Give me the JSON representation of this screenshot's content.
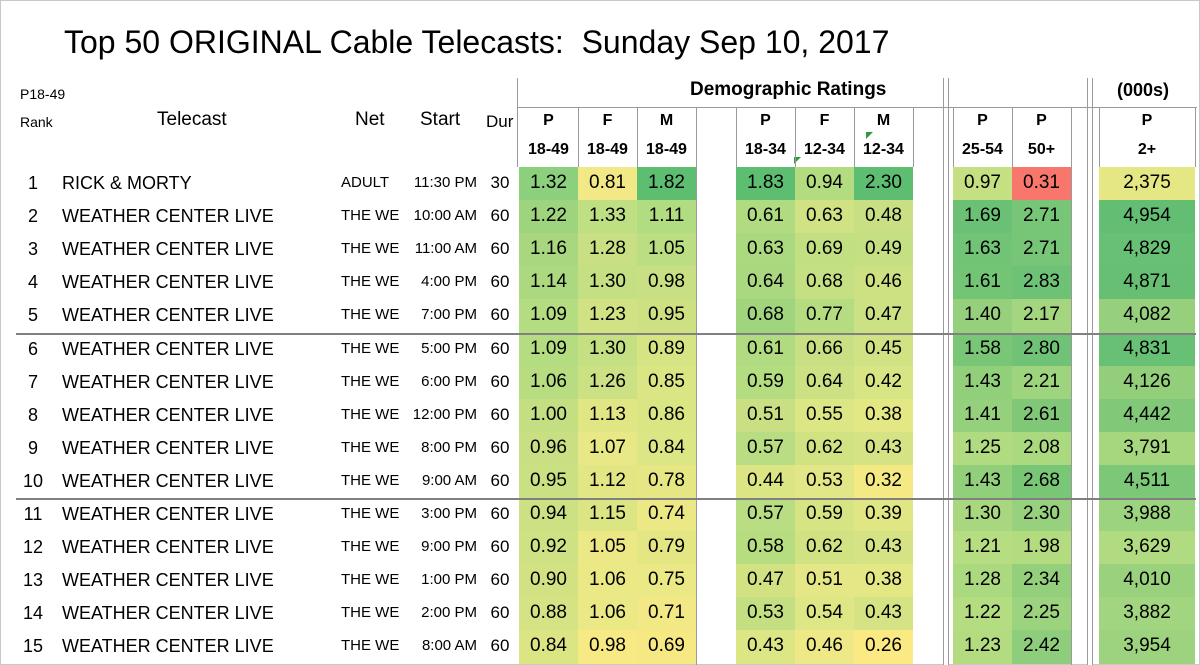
{
  "title": "Top 50 ORIGINAL Cable Telecasts:  Sunday Sep 10, 2017",
  "sort_label": "P18-49",
  "headers": {
    "rank": "Rank",
    "telecast": "Telecast",
    "net": "Net",
    "start": "Start",
    "dur": "Dur",
    "demo_ratings": "Demographic Ratings",
    "thousands": "(000s)"
  },
  "columns": [
    {
      "top": "P",
      "bottom": "18-49"
    },
    {
      "top": "F",
      "bottom": "18-49"
    },
    {
      "top": "M",
      "bottom": "18-49"
    },
    {
      "top": "P",
      "bottom": "18-34"
    },
    {
      "top": "F",
      "bottom": "12-34"
    },
    {
      "top": "M",
      "bottom": "12-34"
    },
    {
      "top": "P",
      "bottom": "25-54"
    },
    {
      "top": "P",
      "bottom": "50+"
    },
    {
      "top": "P",
      "bottom": "2+"
    }
  ],
  "rows": [
    {
      "rank": "1",
      "telecast": "RICK & MORTY",
      "net": "ADULT",
      "start": "11:30 PM",
      "dur": "30",
      "values": [
        "1.32",
        "0.81",
        "1.82",
        "1.83",
        "0.94",
        "2.30",
        "0.97",
        "0.31",
        "2,375"
      ],
      "colors": [
        "#8ccf7c",
        "#f2e886",
        "#5dbd71",
        "#5dbd71",
        "#b3dc81",
        "#5dbd71",
        "#c5e083",
        "#f8766b",
        "#e5e684"
      ]
    },
    {
      "rank": "2",
      "telecast": "WEATHER CENTER LIVE",
      "net": "THE WE",
      "start": "10:00 AM",
      "dur": "60",
      "values": [
        "1.22",
        "1.33",
        "1.11",
        "0.61",
        "0.63",
        "0.48",
        "1.69",
        "2.71",
        "4,954"
      ],
      "colors": [
        "#9fd47e",
        "#bfdf83",
        "#b2dc81",
        "#b0db80",
        "#d0e283",
        "#c8e083",
        "#6ac175",
        "#77c577",
        "#63be73"
      ]
    },
    {
      "rank": "3",
      "telecast": "WEATHER CENTER LIVE",
      "net": "THE WE",
      "start": "11:00 AM",
      "dur": "60",
      "values": [
        "1.16",
        "1.28",
        "1.05",
        "0.63",
        "0.69",
        "0.49",
        "1.63",
        "2.71",
        "4,829"
      ],
      "colors": [
        "#a8d77f",
        "#c8e083",
        "#bcde82",
        "#abd980",
        "#c2df82",
        "#c5e083",
        "#71c376",
        "#77c577",
        "#68c074"
      ]
    },
    {
      "rank": "4",
      "telecast": "WEATHER CENTER LIVE",
      "net": "THE WE",
      "start": "4:00 PM",
      "dur": "60",
      "values": [
        "1.14",
        "1.30",
        "0.98",
        "0.64",
        "0.68",
        "0.46",
        "1.61",
        "2.83",
        "4,871"
      ],
      "colors": [
        "#acd980",
        "#c4e082",
        "#c8e083",
        "#a9d880",
        "#c4e082",
        "#cde183",
        "#74c476",
        "#6ec276",
        "#66bf73"
      ]
    },
    {
      "rank": "5",
      "telecast": "WEATHER CENTER LIVE",
      "net": "THE WE",
      "start": "7:00 PM",
      "dur": "60",
      "values": [
        "1.09",
        "1.23",
        "0.95",
        "0.68",
        "0.77",
        "0.47",
        "1.40",
        "2.17",
        "4,082"
      ],
      "colors": [
        "#b4dc81",
        "#d0e283",
        "#cde183",
        "#a0d57e",
        "#b5dc81",
        "#cbe183",
        "#97d07c",
        "#a3d67f",
        "#96d07c"
      ]
    },
    {
      "rank": "6",
      "telecast": "WEATHER CENTER LIVE",
      "net": "THE WE",
      "start": "5:00 PM",
      "dur": "60",
      "values": [
        "1.09",
        "1.30",
        "0.89",
        "0.61",
        "0.66",
        "0.45",
        "1.58",
        "2.80",
        "4,831"
      ],
      "colors": [
        "#b4dc81",
        "#c4e082",
        "#d6e484",
        "#b0db80",
        "#c8e083",
        "#d0e283",
        "#79c677",
        "#70c376",
        "#68c074"
      ]
    },
    {
      "rank": "7",
      "telecast": "WEATHER CENTER LIVE",
      "net": "THE WE",
      "start": "6:00 PM",
      "dur": "60",
      "values": [
        "1.06",
        "1.26",
        "0.85",
        "0.59",
        "0.64",
        "0.42",
        "1.43",
        "2.21",
        "4,126"
      ],
      "colors": [
        "#b8dd81",
        "#cbe183",
        "#dce584",
        "#b4dc81",
        "#cbe183",
        "#d8e584",
        "#92cf7b",
        "#9fd47e",
        "#93cf7b"
      ]
    },
    {
      "rank": "8",
      "telecast": "WEATHER CENTER LIVE",
      "net": "THE WE",
      "start": "12:00 PM",
      "dur": "60",
      "values": [
        "1.00",
        "1.13",
        "0.86",
        "0.51",
        "0.55",
        "0.38",
        "1.41",
        "2.61",
        "4,442"
      ],
      "colors": [
        "#c3df82",
        "#e0e684",
        "#dae584",
        "#c8e083",
        "#dde685",
        "#e3e784",
        "#95d07c",
        "#80c878",
        "#81c878"
      ]
    },
    {
      "rank": "9",
      "telecast": "WEATHER CENTER LIVE",
      "net": "THE WE",
      "start": "8:00 PM",
      "dur": "60",
      "values": [
        "0.96",
        "1.07",
        "0.84",
        "0.57",
        "0.62",
        "0.43",
        "1.25",
        "2.08",
        "3,791"
      ],
      "colors": [
        "#c8e083",
        "#e9e886",
        "#dde685",
        "#b9dd82",
        "#d1e283",
        "#d5e384",
        "#b0db80",
        "#abd980",
        "#a6d77f"
      ]
    },
    {
      "rank": "10",
      "telecast": "WEATHER CENTER LIVE",
      "net": "THE WE",
      "start": "9:00 AM",
      "dur": "60",
      "values": [
        "0.95",
        "1.12",
        "0.78",
        "0.44",
        "0.53",
        "0.32",
        "1.43",
        "2.68",
        "4,511"
      ],
      "colors": [
        "#c9e083",
        "#e2e685",
        "#e6e784",
        "#dbe584",
        "#e1e686",
        "#f4e983",
        "#92cf7b",
        "#79c677",
        "#7dc778"
      ]
    },
    {
      "rank": "11",
      "telecast": "WEATHER CENTER LIVE",
      "net": "THE WE",
      "start": "3:00 PM",
      "dur": "60",
      "values": [
        "0.94",
        "1.15",
        "0.74",
        "0.57",
        "0.59",
        "0.39",
        "1.30",
        "2.30",
        "3,988"
      ],
      "colors": [
        "#cbe183",
        "#dce584",
        "#ede886",
        "#b9dd82",
        "#d7e484",
        "#e0e684",
        "#a8d77f",
        "#98d17d",
        "#9bd37e"
      ]
    },
    {
      "rank": "12",
      "telecast": "WEATHER CENTER LIVE",
      "net": "THE WE",
      "start": "9:00 PM",
      "dur": "60",
      "values": [
        "0.92",
        "1.05",
        "0.79",
        "0.58",
        "0.62",
        "0.43",
        "1.21",
        "1.98",
        "3,629"
      ],
      "colors": [
        "#cfe283",
        "#ede886",
        "#e4e684",
        "#b7dd81",
        "#d1e283",
        "#d5e384",
        "#b6dd81",
        "#b3dc81",
        "#b0db80"
      ]
    },
    {
      "rank": "13",
      "telecast": "WEATHER CENTER LIVE",
      "net": "THE WE",
      "start": "1:00 PM",
      "dur": "60",
      "values": [
        "0.90",
        "1.06",
        "0.75",
        "0.47",
        "0.51",
        "0.38",
        "1.28",
        "2.34",
        "4,010"
      ],
      "colors": [
        "#d2e283",
        "#ebe886",
        "#ebe886",
        "#d2e283",
        "#e5e786",
        "#e3e784",
        "#abd980",
        "#94d07c",
        "#99d17d"
      ]
    },
    {
      "rank": "14",
      "telecast": "WEATHER CENTER LIVE",
      "net": "THE WE",
      "start": "2:00 PM",
      "dur": "60",
      "values": [
        "0.88",
        "1.06",
        "0.71",
        "0.53",
        "0.54",
        "0.43",
        "1.22",
        "2.25",
        "3,882"
      ],
      "colors": [
        "#d5e384",
        "#ebe886",
        "#f2e886",
        "#c3df82",
        "#dfe685",
        "#d5e384",
        "#b4dc81",
        "#9bd37e",
        "#a1d57f"
      ]
    },
    {
      "rank": "15",
      "telecast": "WEATHER CENTER LIVE",
      "net": "THE WE",
      "start": "8:00 AM",
      "dur": "60",
      "values": [
        "0.84",
        "0.98",
        "0.69",
        "0.43",
        "0.46",
        "0.26",
        "1.23",
        "2.42",
        "3,954"
      ],
      "colors": [
        "#dbe584",
        "#f7ea84",
        "#f6e984",
        "#dde685",
        "#eee986",
        "#fbea84",
        "#b3dc81",
        "#8ecd7b",
        "#9dd37e"
      ]
    }
  ]
}
